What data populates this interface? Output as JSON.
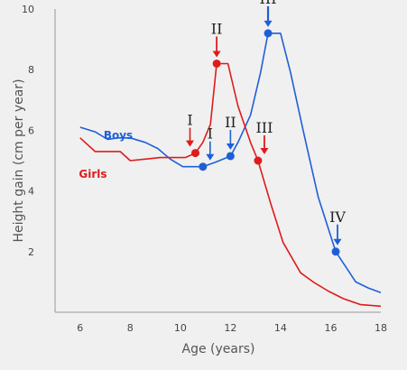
{
  "chart_data": {
    "type": "line",
    "title": "",
    "xlabel": "Age (years)",
    "ylabel": "Height gain (cm per year)",
    "xlim": [
      5,
      18
    ],
    "ylim": [
      0,
      10
    ],
    "xticks": [
      6,
      8,
      10,
      12,
      14,
      16,
      18
    ],
    "yticks": [
      2,
      4,
      6,
      8,
      10
    ],
    "grid": false,
    "colors": {
      "boys": "#1f5fd6",
      "girls": "#e01b1b"
    },
    "series": [
      {
        "name": "Boys",
        "x": [
          6,
          6.6,
          7.1,
          7.5,
          8.0,
          8.6,
          9.1,
          9.6,
          10.1,
          10.9,
          11.4,
          12.0,
          12.3,
          12.8,
          13.2,
          13.5,
          14.0,
          14.4,
          14.9,
          15.5,
          16.2,
          16.6,
          17.0,
          17.5,
          18.0
        ],
        "y": [
          6.1,
          5.95,
          5.7,
          5.75,
          5.75,
          5.6,
          5.4,
          5.05,
          4.8,
          4.8,
          4.95,
          5.15,
          5.6,
          6.5,
          7.9,
          9.2,
          9.2,
          7.9,
          6.0,
          3.8,
          2.0,
          1.5,
          1.0,
          0.8,
          0.65
        ]
      },
      {
        "name": "Girls",
        "x": [
          6,
          6.6,
          7.1,
          7.6,
          8.0,
          8.6,
          9.2,
          9.8,
          10.2,
          10.6,
          10.9,
          11.2,
          11.45,
          11.9,
          12.3,
          12.8,
          13.1,
          13.6,
          14.1,
          14.8,
          15.3,
          15.9,
          16.5,
          17.2,
          18.0
        ],
        "y": [
          5.75,
          5.3,
          5.3,
          5.3,
          5.0,
          5.05,
          5.1,
          5.1,
          5.1,
          5.25,
          5.6,
          6.2,
          8.2,
          8.2,
          6.8,
          5.6,
          5.0,
          3.6,
          2.3,
          1.3,
          1.0,
          0.7,
          0.45,
          0.25,
          0.2
        ]
      }
    ],
    "legend": [
      {
        "text": "Boys",
        "series": "Boys"
      },
      {
        "text": "Girls",
        "series": "Girls"
      }
    ],
    "annotations": [
      {
        "label": "I",
        "series": "Boys",
        "x": 10.9,
        "y": 4.8
      },
      {
        "label": "II",
        "series": "Boys",
        "x": 12.0,
        "y": 5.15
      },
      {
        "label": "III",
        "series": "Boys",
        "x": 13.5,
        "y": 9.2
      },
      {
        "label": "IV",
        "series": "Boys",
        "x": 16.2,
        "y": 2.0
      },
      {
        "label": "I",
        "series": "Girls",
        "x": 10.6,
        "y": 5.25
      },
      {
        "label": "II",
        "series": "Girls",
        "x": 11.45,
        "y": 8.2
      },
      {
        "label": "III",
        "series": "Girls",
        "x": 13.1,
        "y": 5.0
      }
    ]
  }
}
